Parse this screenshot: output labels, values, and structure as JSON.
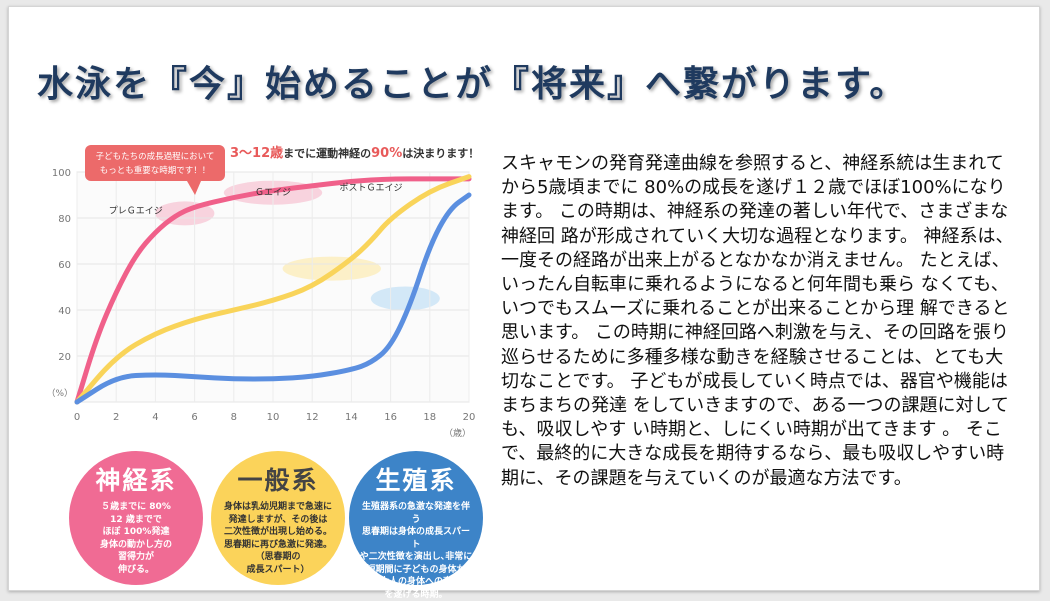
{
  "slide": {
    "title": "水泳を『今』始めることが『将来』へ繋がります。",
    "body": "スキャモンの発育発達曲線を参照すると、神経系統は生まれて から5歳頃までに 80%の成長を遂げ１２歳でほぼ100%になります。 この時期は、神経系の発達の著しい年代で、さまざまな神経回 路が形成されていく大切な過程となります。 神経系は、一度その経路が出来上がるとなかなか消えません。 たとえば、いったん自転車に乗れるようになると何年間も乗ら なくても、いつでもスムーズに乗れることが出来ることから理 解できると思います。 この時期に神経回路へ刺激を与え、その回路を張り巡らせるために多種多様な動きを経験させることは、とても大切なことです。 子どもが成長していく時点では、器官や機能はまちまちの発達 をしていきますので、ある一つの課題に対しても、吸収しやす い時期と、しにくい時期が出てきます 。 そこで、最終的に大きな成長を期待するなら、最も吸収しやすい時期に、その課題を与えていくのが最適な方法です。"
  },
  "chart_data": {
    "type": "line",
    "headline_pre": "3～12歳",
    "headline_mid": "までに運動神経の",
    "headline_pct": "90%",
    "headline_post": "は決まります！",
    "callout": [
      "子どもたちの成長過程において",
      "もっとも重要な時期です！！"
    ],
    "xlabel": "（歳）",
    "ylabel": "（%）",
    "xlim": [
      0,
      20
    ],
    "ylim": [
      0,
      100
    ],
    "xticks": [
      "0",
      "2",
      "4",
      "6",
      "8",
      "10",
      "12",
      "14",
      "16",
      "18",
      "20"
    ],
    "yticks": [
      "20",
      "40",
      "60",
      "80",
      "100"
    ],
    "grid": true,
    "stage_labels": [
      {
        "text": "プレＧエイジ",
        "x": 3,
        "y": 82
      },
      {
        "text": "Ｇエイジ",
        "x": 10,
        "y": 90
      },
      {
        "text": "ポストＧエイジ",
        "x": 15,
        "y": 92
      }
    ],
    "series": [
      {
        "color": "#f0608a",
        "x": [
          0,
          1,
          2,
          3,
          4,
          5,
          6,
          8,
          10,
          12,
          14,
          16,
          18,
          20
        ],
        "y": [
          0,
          28,
          48,
          64,
          74,
          81,
          85,
          89,
          92,
          94,
          96,
          97,
          97,
          97
        ]
      },
      {
        "color": "#f9d45a",
        "x": [
          0,
          2,
          4,
          6,
          8,
          10,
          12,
          14,
          15,
          16,
          18,
          20
        ],
        "y": [
          0,
          20,
          30,
          36,
          40,
          44,
          50,
          62,
          70,
          80,
          92,
          98
        ]
      },
      {
        "color": "#5b8fe0",
        "x": [
          0,
          2,
          4,
          6,
          8,
          10,
          12,
          14,
          15,
          16,
          17,
          18,
          19,
          20
        ],
        "y": [
          0,
          11,
          12,
          11,
          10,
          10,
          11,
          14,
          17,
          24,
          42,
          68,
          84,
          90
        ]
      }
    ]
  },
  "circles": [
    {
      "head": "神経系",
      "lines": [
        "５歳までに 80%",
        "12 歳までで",
        "ほぼ 100%発達",
        "身体の動かし方の",
        "習得力が",
        "伸びる。"
      ],
      "color": "#f06b94"
    },
    {
      "head": "一般系",
      "lines": [
        "身体は乳幼児期まで急速に",
        "発達しますが、その後は",
        "二次性徴が出現し始める。",
        "思春期に再び急激に発達。",
        "（思春期の",
        "成長スパート）"
      ],
      "color": "#fbd35a"
    },
    {
      "head": "生殖系",
      "lines": [
        "生殖器系の急激な発達を伴う",
        "思春期は身体の成長スパート",
        "や二次性徴を演出し､非常に",
        "短期間に子どもの身体か",
        "ら大人の身体への変身",
        "を遂げる時期。"
      ],
      "color": "#3d84c8"
    }
  ]
}
